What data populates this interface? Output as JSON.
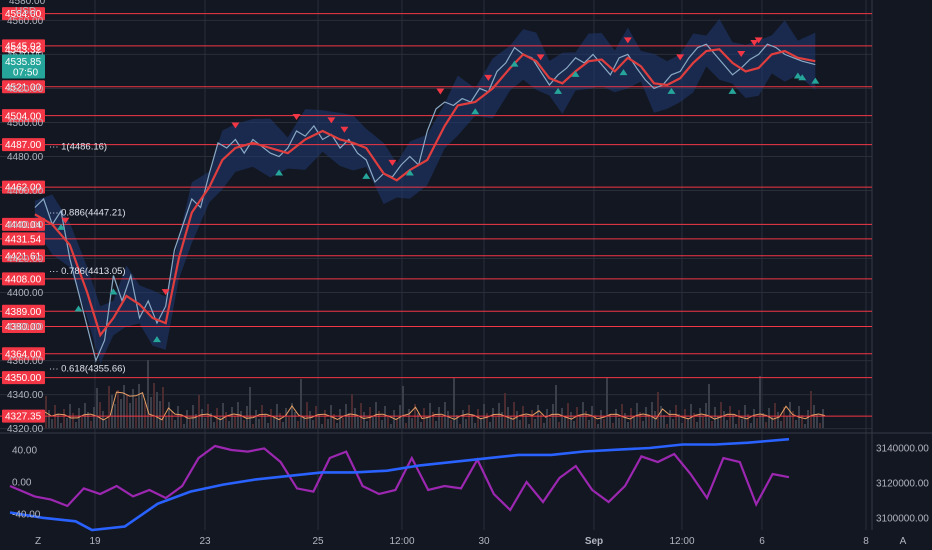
{
  "chart_data": {
    "type": "line",
    "currency_label": "USD",
    "price_axis": {
      "min": 4318,
      "max": 4572,
      "ticks": [
        "4560.00",
        "4540.00",
        "4520.00",
        "4500.00",
        "4480.00",
        "4460.00",
        "4440.00",
        "4420.00",
        "4400.00",
        "4380.00",
        "4360.00",
        "4340.00",
        "4320.00"
      ],
      "top_partial_tick": "4580.00"
    },
    "x_axis": {
      "ticks": [
        "19",
        "23",
        "25",
        "12:00",
        "30",
        "Sep",
        "12:00",
        "6",
        "8"
      ],
      "bold_tick": "Sep"
    },
    "corner_labels": {
      "left": "Z",
      "right": "A"
    },
    "current_price": {
      "value": 4535.85,
      "label": "4535.85",
      "countdown": "07:50",
      "color": "#26a69a"
    },
    "upper_price_label": {
      "value": 4543,
      "label": "4543.32"
    },
    "horizontal_levels": [
      {
        "value": 4564.0,
        "label": "4564.00"
      },
      {
        "value": 4545.02,
        "label": "4545.02"
      },
      {
        "value": 4521.0,
        "label": "4521.00"
      },
      {
        "value": 4504.0,
        "label": "4504.00"
      },
      {
        "value": 4487.0,
        "label": "4487.00"
      },
      {
        "value": 4462.0,
        "label": "4462.00"
      },
      {
        "value": 4440.04,
        "label": "4440.04"
      },
      {
        "value": 4431.54,
        "label": "4431.54"
      },
      {
        "value": 4421.61,
        "label": "4421.61"
      },
      {
        "value": 4408.0,
        "label": "4408.00"
      },
      {
        "value": 4389.0,
        "label": "4389.00"
      },
      {
        "value": 4380.0,
        "label": "4380.00"
      },
      {
        "value": 4364.0,
        "label": "4364.00"
      },
      {
        "value": 4350.0,
        "label": "4350.00"
      },
      {
        "value": 4327.35,
        "label": "4327.35"
      }
    ],
    "fib_labels": [
      {
        "value": 4486.16,
        "label": "1(4486.16)"
      },
      {
        "value": 4447.21,
        "label": "0.886(4447.21)"
      },
      {
        "value": 4413.05,
        "label": "0.786(4413.05)"
      },
      {
        "value": 4355.66,
        "label": "0.618(4355.66)"
      }
    ],
    "moving_average": {
      "color": "#e03e3e",
      "points": [
        [
          0.04,
          4446
        ],
        [
          0.06,
          4440
        ],
        [
          0.08,
          4428
        ],
        [
          0.1,
          4400
        ],
        [
          0.115,
          4375
        ],
        [
          0.13,
          4385
        ],
        [
          0.145,
          4398
        ],
        [
          0.16,
          4393
        ],
        [
          0.175,
          4385
        ],
        [
          0.19,
          4382
        ],
        [
          0.205,
          4420
        ],
        [
          0.22,
          4447
        ],
        [
          0.24,
          4462
        ],
        [
          0.255,
          4478
        ],
        [
          0.27,
          4485
        ],
        [
          0.29,
          4488
        ],
        [
          0.31,
          4485
        ],
        [
          0.33,
          4482
        ],
        [
          0.35,
          4490
        ],
        [
          0.37,
          4495
        ],
        [
          0.39,
          4490
        ],
        [
          0.405,
          4488
        ],
        [
          0.42,
          4485
        ],
        [
          0.44,
          4470
        ],
        [
          0.455,
          4466
        ],
        [
          0.47,
          4472
        ],
        [
          0.49,
          4478
        ],
        [
          0.51,
          4498
        ],
        [
          0.525,
          4510
        ],
        [
          0.545,
          4512
        ],
        [
          0.565,
          4520
        ],
        [
          0.585,
          4532
        ],
        [
          0.6,
          4540
        ],
        [
          0.615,
          4536
        ],
        [
          0.63,
          4526
        ],
        [
          0.645,
          4523
        ],
        [
          0.66,
          4530
        ],
        [
          0.675,
          4536
        ],
        [
          0.69,
          4537
        ],
        [
          0.705,
          4530
        ],
        [
          0.72,
          4538
        ],
        [
          0.735,
          4533
        ],
        [
          0.75,
          4523
        ],
        [
          0.765,
          4522
        ],
        [
          0.78,
          4526
        ],
        [
          0.795,
          4535
        ],
        [
          0.81,
          4542
        ],
        [
          0.825,
          4543
        ],
        [
          0.84,
          4535
        ],
        [
          0.855,
          4530
        ],
        [
          0.87,
          4532
        ],
        [
          0.885,
          4540
        ],
        [
          0.9,
          4542
        ],
        [
          0.915,
          4538
        ],
        [
          0.935,
          4536
        ]
      ]
    },
    "price_line": {
      "color": "#8aa9c4",
      "points": [
        [
          0.04,
          4450
        ],
        [
          0.05,
          4455
        ],
        [
          0.06,
          4440
        ],
        [
          0.07,
          4448
        ],
        [
          0.08,
          4420
        ],
        [
          0.09,
          4400
        ],
        [
          0.1,
          4380
        ],
        [
          0.11,
          4360
        ],
        [
          0.12,
          4372
        ],
        [
          0.13,
          4410
        ],
        [
          0.14,
          4395
        ],
        [
          0.15,
          4410
        ],
        [
          0.16,
          4385
        ],
        [
          0.17,
          4395
        ],
        [
          0.18,
          4382
        ],
        [
          0.19,
          4392
        ],
        [
          0.2,
          4425
        ],
        [
          0.21,
          4440
        ],
        [
          0.22,
          4455
        ],
        [
          0.23,
          4450
        ],
        [
          0.24,
          4470
        ],
        [
          0.25,
          4488
        ],
        [
          0.26,
          4485
        ],
        [
          0.27,
          4490
        ],
        [
          0.28,
          4482
        ],
        [
          0.29,
          4490
        ],
        [
          0.3,
          4486
        ],
        [
          0.31,
          4482
        ],
        [
          0.32,
          4480
        ],
        [
          0.33,
          4485
        ],
        [
          0.34,
          4495
        ],
        [
          0.35,
          4492
        ],
        [
          0.36,
          4498
        ],
        [
          0.37,
          4490
        ],
        [
          0.38,
          4493
        ],
        [
          0.39,
          4485
        ],
        [
          0.4,
          4490
        ],
        [
          0.41,
          4482
        ],
        [
          0.42,
          4478
        ],
        [
          0.43,
          4465
        ],
        [
          0.44,
          4470
        ],
        [
          0.45,
          4468
        ],
        [
          0.46,
          4475
        ],
        [
          0.47,
          4480
        ],
        [
          0.48,
          4475
        ],
        [
          0.49,
          4495
        ],
        [
          0.5,
          4508
        ],
        [
          0.51,
          4512
        ],
        [
          0.52,
          4510
        ],
        [
          0.53,
          4514
        ],
        [
          0.54,
          4512
        ],
        [
          0.55,
          4520
        ],
        [
          0.56,
          4518
        ],
        [
          0.57,
          4530
        ],
        [
          0.58,
          4535
        ],
        [
          0.59,
          4544
        ],
        [
          0.6,
          4540
        ],
        [
          0.61,
          4538
        ],
        [
          0.62,
          4530
        ],
        [
          0.63,
          4522
        ],
        [
          0.64,
          4528
        ],
        [
          0.65,
          4532
        ],
        [
          0.66,
          4538
        ],
        [
          0.67,
          4535
        ],
        [
          0.68,
          4540
        ],
        [
          0.69,
          4534
        ],
        [
          0.7,
          4528
        ],
        [
          0.71,
          4538
        ],
        [
          0.72,
          4540
        ],
        [
          0.73,
          4532
        ],
        [
          0.74,
          4525
        ],
        [
          0.75,
          4520
        ],
        [
          0.76,
          4522
        ],
        [
          0.77,
          4528
        ],
        [
          0.78,
          4530
        ],
        [
          0.79,
          4538
        ],
        [
          0.8,
          4544
        ],
        [
          0.81,
          4546
        ],
        [
          0.82,
          4540
        ],
        [
          0.83,
          4534
        ],
        [
          0.84,
          4528
        ],
        [
          0.85,
          4532
        ],
        [
          0.86,
          4537
        ],
        [
          0.87,
          4540
        ],
        [
          0.88,
          4546
        ],
        [
          0.89,
          4544
        ],
        [
          0.9,
          4540
        ],
        [
          0.91,
          4538
        ],
        [
          0.92,
          4536
        ],
        [
          0.935,
          4534
        ]
      ]
    },
    "sell_signals": [
      0.075,
      0.19,
      0.27,
      0.34,
      0.38,
      0.395,
      0.45,
      0.505,
      0.56,
      0.62,
      0.72,
      0.78,
      0.85,
      0.865,
      0.87
    ],
    "buy_signals": [
      0.07,
      0.09,
      0.13,
      0.18,
      0.32,
      0.42,
      0.47,
      0.545,
      0.59,
      0.64,
      0.66,
      0.715,
      0.77,
      0.84,
      0.915,
      0.92,
      0.935
    ],
    "volume_overlay_color": "#e8a064",
    "oscillator": {
      "left_ticks": [
        "40.00",
        "0.00",
        "-40.00"
      ],
      "right_ticks": [
        "3140000.00",
        "3120000.00",
        "3100000.00"
      ],
      "range": [
        -60,
        60
      ],
      "obv_range": [
        3093000,
        3148000
      ],
      "oscillator_color": "#9c27b0",
      "obv_color": "#2962ff",
      "oscillator_values": [
        [
          0.0,
          -5
        ],
        [
          0.03,
          -18
        ],
        [
          0.05,
          -22
        ],
        [
          0.07,
          -30
        ],
        [
          0.09,
          -8
        ],
        [
          0.11,
          -15
        ],
        [
          0.13,
          -5
        ],
        [
          0.15,
          -18
        ],
        [
          0.17,
          -10
        ],
        [
          0.19,
          -20
        ],
        [
          0.21,
          -5
        ],
        [
          0.23,
          30
        ],
        [
          0.25,
          45
        ],
        [
          0.27,
          40
        ],
        [
          0.29,
          38
        ],
        [
          0.31,
          42
        ],
        [
          0.33,
          25
        ],
        [
          0.35,
          -8
        ],
        [
          0.37,
          -12
        ],
        [
          0.39,
          30
        ],
        [
          0.41,
          38
        ],
        [
          0.43,
          -5
        ],
        [
          0.45,
          -15
        ],
        [
          0.47,
          -10
        ],
        [
          0.49,
          30
        ],
        [
          0.51,
          -10
        ],
        [
          0.53,
          -5
        ],
        [
          0.55,
          -8
        ],
        [
          0.57,
          28
        ],
        [
          0.59,
          -15
        ],
        [
          0.61,
          -35
        ],
        [
          0.63,
          0
        ],
        [
          0.65,
          -25
        ],
        [
          0.67,
          5
        ],
        [
          0.69,
          20
        ],
        [
          0.71,
          -10
        ],
        [
          0.73,
          -25
        ],
        [
          0.75,
          -5
        ],
        [
          0.77,
          32
        ],
        [
          0.79,
          25
        ],
        [
          0.81,
          35
        ],
        [
          0.83,
          10
        ],
        [
          0.85,
          -20
        ],
        [
          0.87,
          30
        ],
        [
          0.89,
          25
        ],
        [
          0.91,
          -28
        ],
        [
          0.93,
          10
        ],
        [
          0.95,
          6
        ]
      ],
      "obv_values": [
        [
          0.0,
          3103000
        ],
        [
          0.04,
          3100000
        ],
        [
          0.08,
          3098000
        ],
        [
          0.1,
          3093000
        ],
        [
          0.14,
          3095000
        ],
        [
          0.18,
          3108000
        ],
        [
          0.22,
          3115000
        ],
        [
          0.26,
          3119000
        ],
        [
          0.3,
          3122000
        ],
        [
          0.34,
          3124000
        ],
        [
          0.38,
          3126000
        ],
        [
          0.42,
          3126000
        ],
        [
          0.46,
          3127000
        ],
        [
          0.5,
          3130000
        ],
        [
          0.54,
          3132000
        ],
        [
          0.58,
          3134000
        ],
        [
          0.62,
          3136000
        ],
        [
          0.66,
          3136000
        ],
        [
          0.7,
          3138000
        ],
        [
          0.74,
          3139000
        ],
        [
          0.78,
          3140000
        ],
        [
          0.82,
          3142000
        ],
        [
          0.86,
          3142000
        ],
        [
          0.9,
          3143000
        ],
        [
          0.95,
          3145000
        ]
      ]
    }
  },
  "colors": {
    "background": "#131722",
    "level_line": "#f23645",
    "level_label_bg": "#f23645",
    "grid": "#2a2e39",
    "band_fill": "#1f3a73",
    "sell_marker": "#f23645",
    "buy_marker": "#26a69a"
  }
}
